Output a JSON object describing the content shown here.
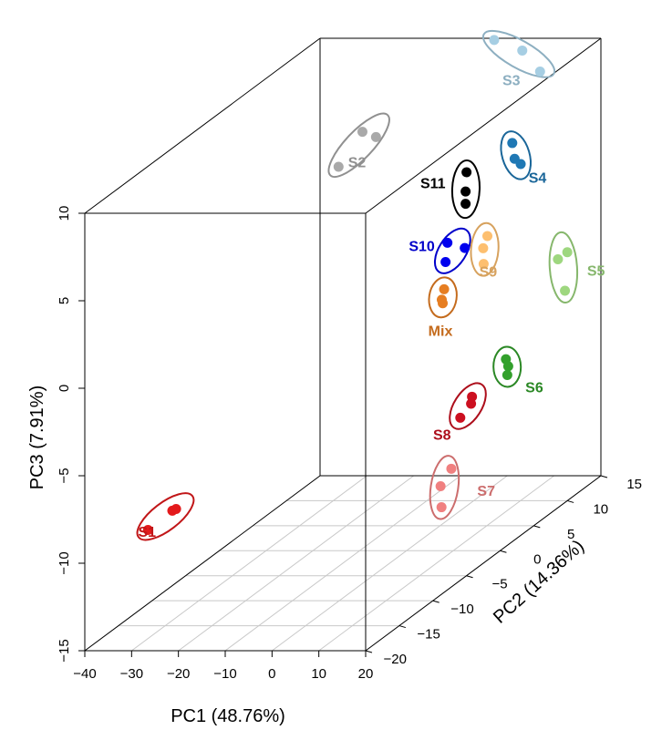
{
  "chart_data": {
    "type": "scatter",
    "projection": "3d",
    "xlabel": "PC1 (48.76%)",
    "ylabel": "PC2 (14.36%)",
    "zlabel": "PC3 (7.91%)",
    "xlim": [
      -40,
      20
    ],
    "ylim": [
      -20,
      15
    ],
    "zlim": [
      -15,
      10
    ],
    "x_ticks": [
      "−40",
      "−30",
      "−20",
      "−10",
      "0",
      "10",
      "20"
    ],
    "y_ticks": [
      "−20",
      "−15",
      "−10",
      "−5",
      "0",
      "5",
      "10",
      "15"
    ],
    "z_ticks": [
      "−15",
      "−10",
      "−5",
      "0",
      "5",
      "10"
    ],
    "grid": "floor",
    "groups": [
      {
        "name": "S1",
        "color": "#e31a1c",
        "points": [
          [
            -26.5,
            -20,
            -8.1
          ],
          [
            -21.3,
            -20,
            -7.0
          ],
          [
            -20.5,
            -20,
            -6.9
          ]
        ]
      },
      {
        "name": "S2",
        "color": "#a9a9a9",
        "points": [
          [
            -10.2,
            -3,
            7.8
          ],
          [
            -5.1,
            -3,
            9.8
          ],
          [
            -2.2,
            -3,
            9.5
          ]
        ]
      },
      {
        "name": "S3",
        "color": "#a6cee3",
        "points": [
          [
            -2.8,
            15,
            9.9
          ],
          [
            3.2,
            15,
            9.3
          ],
          [
            7.0,
            15,
            8.1
          ]
        ]
      },
      {
        "name": "S4",
        "color": "#1f78b4",
        "points": [
          [
            2.5,
            14,
            4.3
          ],
          [
            3.0,
            14,
            3.4
          ],
          [
            4.3,
            14,
            3.1
          ]
        ]
      },
      {
        "name": "S11",
        "color": "#000000",
        "points": [
          [
            -4.4,
            12,
            3.2
          ],
          [
            -4.6,
            12,
            2.1
          ],
          [
            -4.6,
            12,
            1.4
          ]
        ]
      },
      {
        "name": "S10",
        "color": "#0000ee",
        "points": [
          [
            -1.3,
            7,
            0.6
          ],
          [
            2.4,
            7,
            0.3
          ],
          [
            -1.7,
            7,
            -0.5
          ]
        ]
      },
      {
        "name": "S9",
        "color": "#fdbf6f",
        "points": [
          [
            5.8,
            8,
            0.7
          ],
          [
            4.9,
            8,
            0.0
          ],
          [
            5.0,
            8,
            -0.9
          ]
        ]
      },
      {
        "name": "S5",
        "color": "#9ed77f",
        "points": [
          [
            18.0,
            10,
            -1.2
          ],
          [
            20.0,
            10,
            -0.8
          ],
          [
            19.5,
            10,
            -3.0
          ]
        ]
      },
      {
        "name": "Mix",
        "color": "#e67e22",
        "points": [
          [
            2.3,
            4,
            -1.2
          ],
          [
            1.8,
            4,
            -1.8
          ],
          [
            2.0,
            4,
            -2.0
          ]
        ]
      },
      {
        "name": "S6",
        "color": "#33a02c",
        "points": [
          [
            15.5,
            4,
            -5.2
          ],
          [
            16.0,
            4,
            -5.6
          ],
          [
            15.8,
            4,
            -6.1
          ]
        ]
      },
      {
        "name": "S8",
        "color": "#cc1020",
        "points": [
          [
            14.0,
            0,
            -6.2
          ],
          [
            13.8,
            0,
            -6.6
          ],
          [
            11.5,
            0,
            -7.4
          ]
        ]
      },
      {
        "name": "S7",
        "color": "#f08080",
        "points": [
          [
            18.2,
            -6,
            -8.6
          ],
          [
            15.9,
            -6,
            -9.6
          ],
          [
            16.1,
            -6,
            -10.8
          ]
        ]
      }
    ]
  }
}
